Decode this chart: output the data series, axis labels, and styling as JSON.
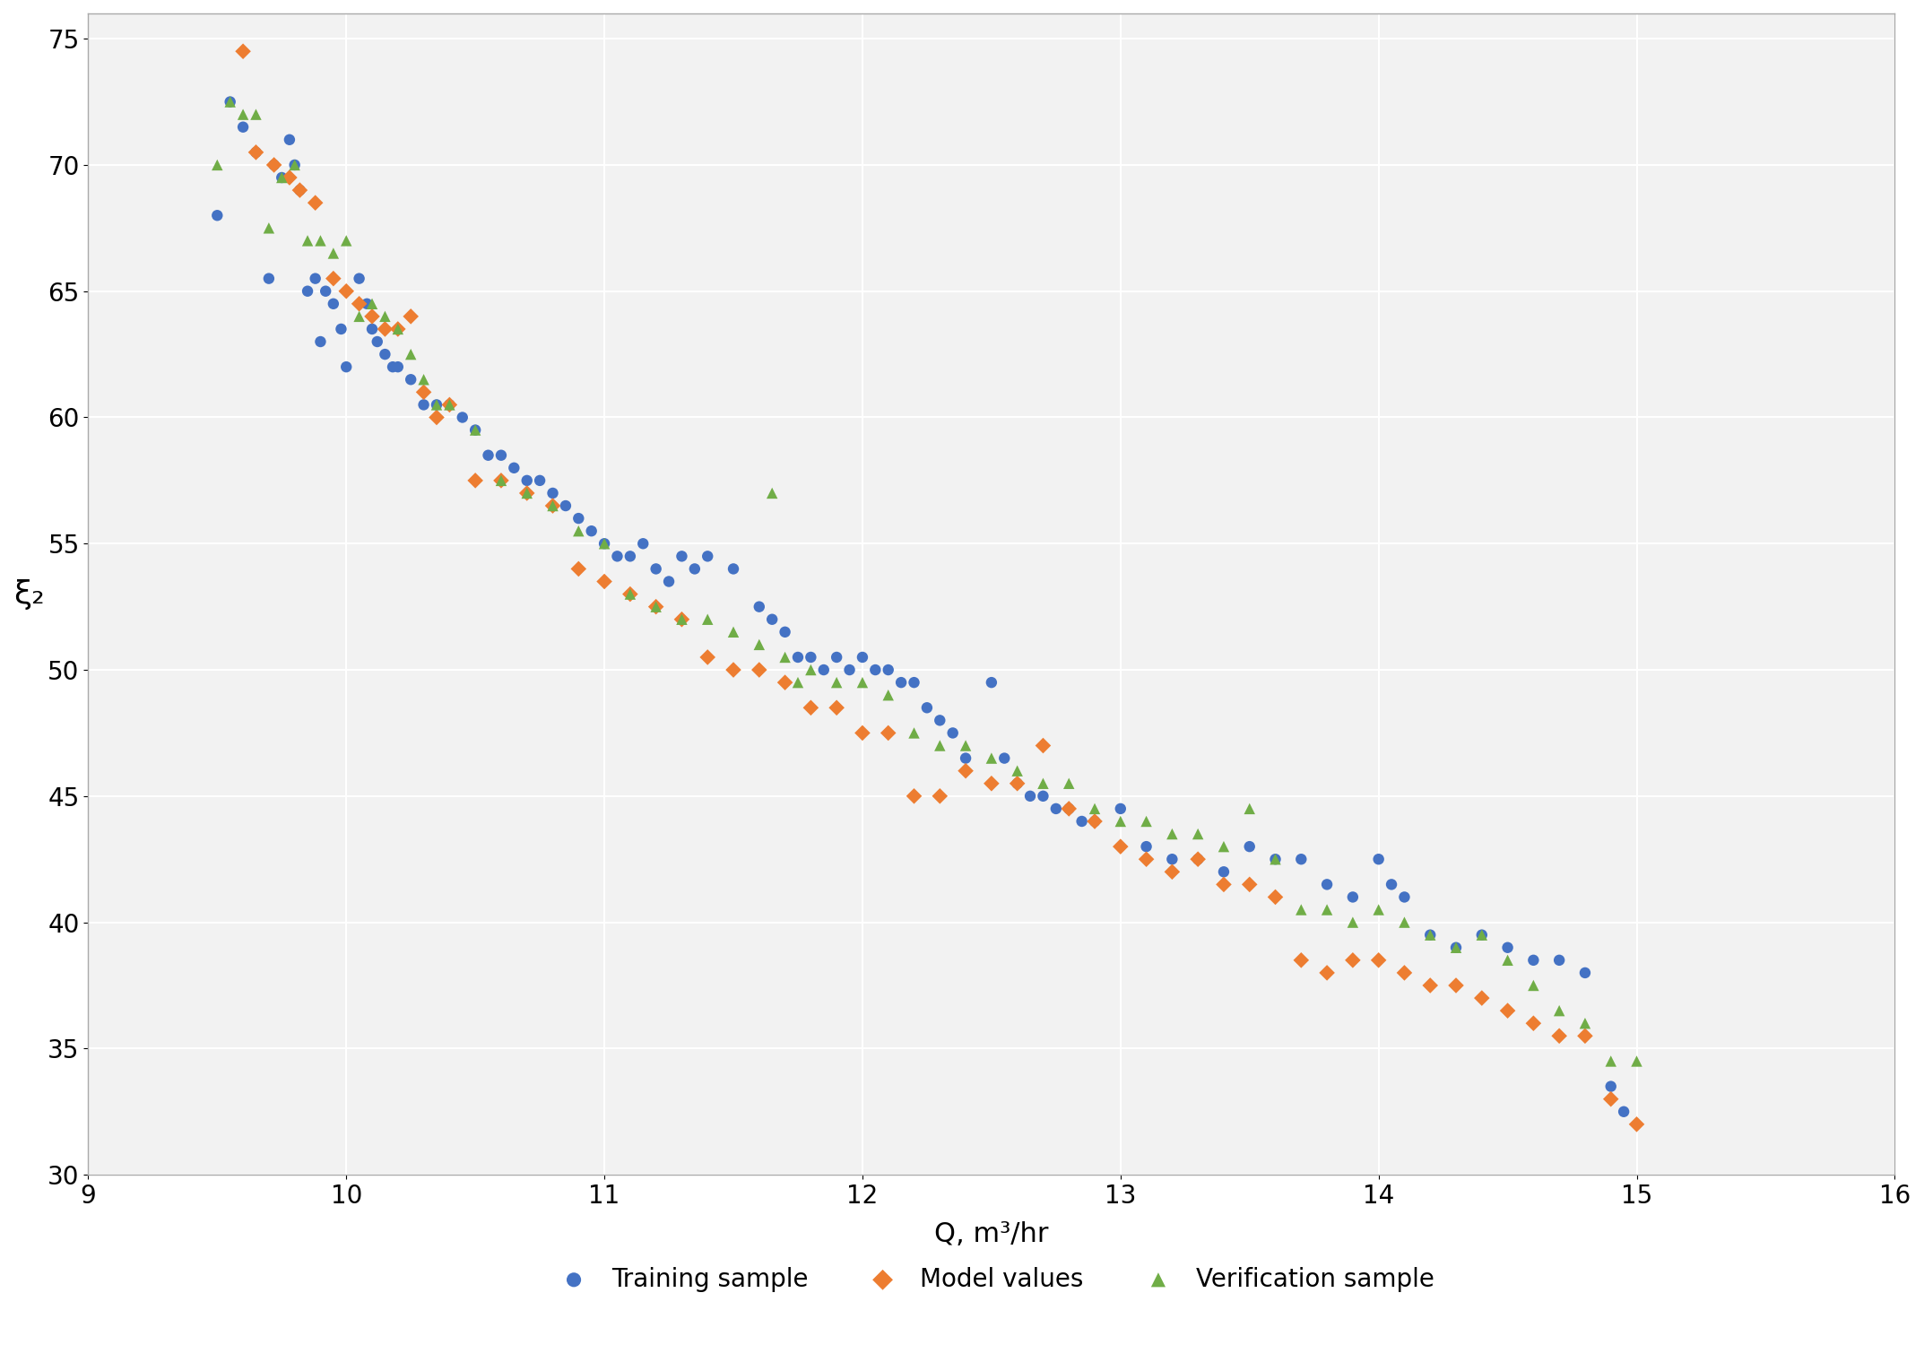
{
  "training_x": [
    9.5,
    9.55,
    9.6,
    9.65,
    9.7,
    9.72,
    9.75,
    9.78,
    9.8,
    9.82,
    9.85,
    9.88,
    9.9,
    9.92,
    9.95,
    9.98,
    10.0,
    10.05,
    10.08,
    10.1,
    10.12,
    10.15,
    10.18,
    10.2,
    10.25,
    10.3,
    10.35,
    10.4,
    10.45,
    10.5,
    10.55,
    10.6,
    10.65,
    10.7,
    10.75,
    10.8,
    10.85,
    10.9,
    10.95,
    11.0,
    11.05,
    11.1,
    11.15,
    11.2,
    11.25,
    11.3,
    11.35,
    11.4,
    11.5,
    11.6,
    11.65,
    11.7,
    11.75,
    11.8,
    11.85,
    11.9,
    11.95,
    12.0,
    12.05,
    12.1,
    12.15,
    12.2,
    12.25,
    12.3,
    12.35,
    12.4,
    12.5,
    12.55,
    12.6,
    12.65,
    12.7,
    12.75,
    12.8,
    12.85,
    12.9,
    13.0,
    13.1,
    13.2,
    13.3,
    13.4,
    13.5,
    13.6,
    13.7,
    13.8,
    13.9,
    14.0,
    14.05,
    14.1,
    14.2,
    14.3,
    14.4,
    14.5,
    14.6,
    14.7,
    14.8,
    14.9,
    14.95
  ],
  "training_y": [
    68.0,
    72.5,
    71.5,
    70.5,
    65.5,
    70.0,
    69.5,
    71.0,
    70.0,
    69.0,
    65.0,
    65.5,
    63.0,
    65.0,
    64.5,
    63.5,
    62.0,
    65.5,
    64.5,
    63.5,
    63.0,
    62.5,
    62.0,
    62.0,
    61.5,
    60.5,
    60.5,
    60.5,
    60.0,
    59.5,
    58.5,
    58.5,
    58.0,
    57.5,
    57.5,
    57.0,
    56.5,
    56.0,
    55.5,
    55.0,
    54.5,
    54.5,
    55.0,
    54.0,
    53.5,
    54.5,
    54.0,
    54.5,
    54.0,
    52.5,
    52.0,
    51.5,
    50.5,
    50.5,
    50.0,
    50.5,
    50.0,
    50.5,
    50.0,
    50.0,
    49.5,
    49.5,
    48.5,
    48.0,
    47.5,
    46.5,
    49.5,
    46.5,
    45.5,
    45.0,
    45.0,
    44.5,
    44.5,
    44.0,
    44.0,
    44.5,
    43.0,
    42.5,
    42.5,
    42.0,
    43.0,
    42.5,
    42.5,
    41.5,
    41.0,
    42.5,
    41.5,
    41.0,
    39.5,
    39.0,
    39.5,
    39.0,
    38.5,
    38.5,
    38.0,
    33.5,
    32.5
  ],
  "model_x": [
    9.6,
    9.65,
    9.72,
    9.78,
    9.82,
    9.88,
    9.95,
    10.0,
    10.05,
    10.1,
    10.15,
    10.2,
    10.25,
    10.3,
    10.35,
    10.4,
    10.5,
    10.6,
    10.7,
    10.8,
    10.9,
    11.0,
    11.1,
    11.2,
    11.3,
    11.4,
    11.5,
    11.6,
    11.7,
    11.8,
    11.9,
    12.0,
    12.1,
    12.2,
    12.3,
    12.4,
    12.5,
    12.6,
    12.7,
    12.8,
    12.9,
    13.0,
    13.1,
    13.2,
    13.3,
    13.4,
    13.5,
    13.6,
    13.7,
    13.8,
    13.9,
    14.0,
    14.1,
    14.2,
    14.3,
    14.4,
    14.5,
    14.6,
    14.7,
    14.8,
    14.9,
    15.0
  ],
  "model_y": [
    74.5,
    70.5,
    70.0,
    69.5,
    69.0,
    68.5,
    65.5,
    65.0,
    64.5,
    64.0,
    63.5,
    63.5,
    64.0,
    61.0,
    60.0,
    60.5,
    57.5,
    57.5,
    57.0,
    56.5,
    54.0,
    53.5,
    53.0,
    52.5,
    52.0,
    50.5,
    50.0,
    50.0,
    49.5,
    48.5,
    48.5,
    47.5,
    47.5,
    45.0,
    45.0,
    46.0,
    45.5,
    45.5,
    47.0,
    44.5,
    44.0,
    43.0,
    42.5,
    42.0,
    42.5,
    41.5,
    41.5,
    41.0,
    38.5,
    38.0,
    38.5,
    38.5,
    38.0,
    37.5,
    37.5,
    37.0,
    36.5,
    36.0,
    35.5,
    35.5,
    33.0,
    32.0
  ],
  "verif_x": [
    9.5,
    9.55,
    9.6,
    9.65,
    9.7,
    9.75,
    9.8,
    9.85,
    9.9,
    9.95,
    10.0,
    10.05,
    10.1,
    10.15,
    10.2,
    10.25,
    10.3,
    10.35,
    10.4,
    10.5,
    10.6,
    10.7,
    10.8,
    10.9,
    11.0,
    11.1,
    11.2,
    11.3,
    11.4,
    11.5,
    11.6,
    11.65,
    11.7,
    11.75,
    11.8,
    11.9,
    12.0,
    12.1,
    12.2,
    12.3,
    12.4,
    12.5,
    12.6,
    12.7,
    12.8,
    12.9,
    13.0,
    13.1,
    13.2,
    13.3,
    13.4,
    13.5,
    13.6,
    13.7,
    13.8,
    13.9,
    14.0,
    14.1,
    14.2,
    14.3,
    14.4,
    14.5,
    14.6,
    14.7,
    14.8,
    14.9,
    15.0
  ],
  "verif_y": [
    70.0,
    72.5,
    72.0,
    72.0,
    67.5,
    69.5,
    70.0,
    67.0,
    67.0,
    66.5,
    67.0,
    64.0,
    64.5,
    64.0,
    63.5,
    62.5,
    61.5,
    60.5,
    60.5,
    59.5,
    57.5,
    57.0,
    56.5,
    55.5,
    55.0,
    53.0,
    52.5,
    52.0,
    52.0,
    51.5,
    51.0,
    57.0,
    50.5,
    49.5,
    50.0,
    49.5,
    49.5,
    49.0,
    47.5,
    47.0,
    47.0,
    46.5,
    46.0,
    45.5,
    45.5,
    44.5,
    44.0,
    44.0,
    43.5,
    43.5,
    43.0,
    44.5,
    42.5,
    40.5,
    40.5,
    40.0,
    40.5,
    40.0,
    39.5,
    39.0,
    39.5,
    38.5,
    37.5,
    36.5,
    36.0,
    34.5,
    34.5
  ],
  "xlim": [
    9,
    16
  ],
  "ylim": [
    30,
    76
  ],
  "xticks": [
    9,
    10,
    11,
    12,
    13,
    14,
    15,
    16
  ],
  "yticks": [
    30,
    35,
    40,
    45,
    50,
    55,
    60,
    65,
    70,
    75
  ],
  "xlabel": "Q, m³/hr",
  "ylabel": "ξ₂",
  "training_color": "#4472C4",
  "model_color": "#ED7D31",
  "verif_color": "#70AD47",
  "background_color": "#F2F2F2",
  "grid_color": "#FFFFFF",
  "marker_size": 80,
  "legend_labels": [
    "Training sample",
    "Model values",
    "Verification sample"
  ]
}
